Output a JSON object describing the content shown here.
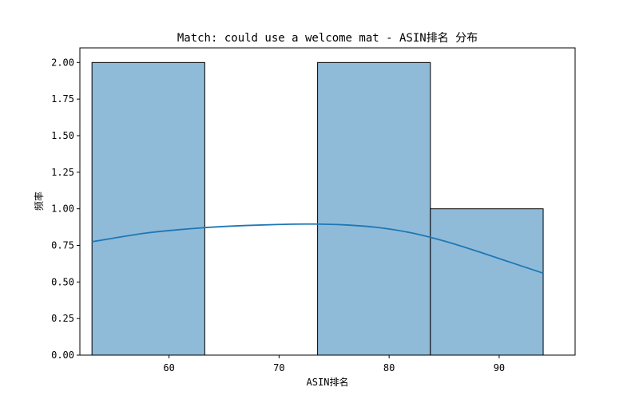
{
  "chart_data": {
    "type": "histogram",
    "title": "Match: could use a welcome mat - ASIN排名 分布",
    "xlabel": "ASIN排名",
    "ylabel": "频率",
    "xlim": [
      51.9,
      96.9
    ],
    "ylim": [
      0,
      2.1
    ],
    "x_ticks": [
      60,
      70,
      80,
      90
    ],
    "y_ticks": [
      0.0,
      0.25,
      0.5,
      0.75,
      1.0,
      1.25,
      1.5,
      1.75,
      2.0
    ],
    "y_tick_labels": [
      "0.00",
      "0.25",
      "0.50",
      "0.75",
      "1.00",
      "1.25",
      "1.50",
      "1.75",
      "2.00"
    ],
    "bins": [
      {
        "x0": 53.0,
        "x1": 63.25,
        "count": 2
      },
      {
        "x0": 63.25,
        "x1": 73.5,
        "count": 0
      },
      {
        "x0": 73.5,
        "x1": 83.75,
        "count": 2
      },
      {
        "x0": 83.75,
        "x1": 94.0,
        "count": 1
      }
    ],
    "kde": {
      "x": [
        53,
        55,
        58,
        61,
        64,
        67,
        70,
        73,
        76,
        79,
        82,
        85,
        88,
        91,
        94
      ],
      "y": [
        0.775,
        0.8,
        0.835,
        0.858,
        0.875,
        0.886,
        0.893,
        0.896,
        0.89,
        0.872,
        0.836,
        0.78,
        0.71,
        0.635,
        0.56
      ]
    },
    "grid": false,
    "bar_color": "#8fbbd9",
    "bar_edge_color": "#000000",
    "kde_color": "#1f77b4"
  }
}
